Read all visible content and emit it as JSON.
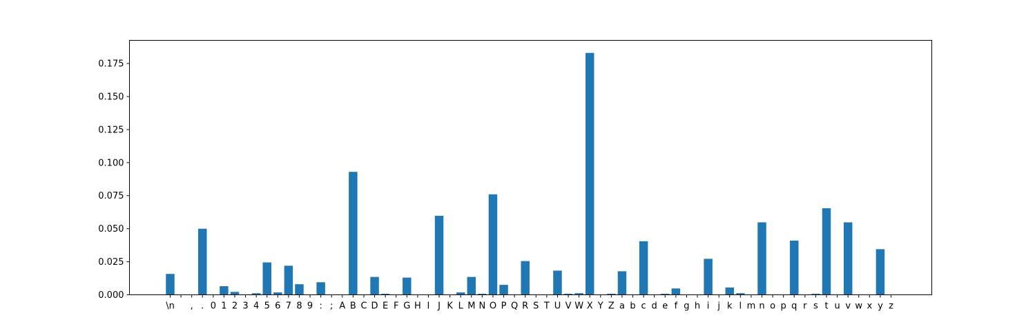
{
  "chart_data": {
    "type": "bar",
    "title": "",
    "xlabel": "",
    "ylabel": "",
    "ylim": [
      0,
      0.1925
    ],
    "yticks": [
      "0.000",
      "0.025",
      "0.050",
      "0.075",
      "0.100",
      "0.125",
      "0.150",
      "0.175"
    ],
    "ytick_values": [
      0,
      0.025,
      0.05,
      0.075,
      0.1,
      0.125,
      0.15,
      0.175
    ],
    "bar_color": "#1f77b4",
    "grid": false,
    "categories": [
      "\\n",
      " ",
      ",",
      ".",
      "0",
      "1",
      "2",
      "3",
      "4",
      "5",
      "6",
      "7",
      "8",
      "9",
      ":",
      ";",
      "A",
      "B",
      "C",
      "D",
      "E",
      "F",
      "G",
      "H",
      "I",
      "J",
      "K",
      "L",
      "M",
      "N",
      "O",
      "P",
      "Q",
      "R",
      "S",
      "T",
      "U",
      "V",
      "W",
      "X",
      "Y",
      "Z",
      "a",
      "b",
      "c",
      "d",
      "e",
      "f",
      "g",
      "h",
      "i",
      "j",
      "k",
      "l",
      "m",
      "n",
      "o",
      "p",
      "q",
      "r",
      "s",
      "t",
      "u",
      "v",
      "w",
      "x",
      "y",
      "z"
    ],
    "values": [
      0.0158,
      0,
      0,
      0.05,
      0,
      0.0065,
      0.0022,
      0.0003,
      0.0012,
      0.0245,
      0.0018,
      0.022,
      0.008,
      0,
      0.0095,
      0,
      0,
      0.093,
      0,
      0.0135,
      0.0008,
      0,
      0.013,
      0,
      0,
      0.0598,
      0,
      0.0018,
      0.0135,
      0.0008,
      0.076,
      0.0075,
      0,
      0.0255,
      0,
      0,
      0.0183,
      0.0008,
      0.0012,
      0.183,
      0,
      0.0008,
      0.0178,
      0,
      0.0405,
      0,
      0.0008,
      0.0048,
      0,
      0,
      0.0272,
      0,
      0.0055,
      0.0012,
      0,
      0.0548,
      0,
      0,
      0.041,
      0,
      0.0008,
      0.0655,
      0,
      0.0548,
      0,
      0,
      0.0345,
      0
    ]
  }
}
